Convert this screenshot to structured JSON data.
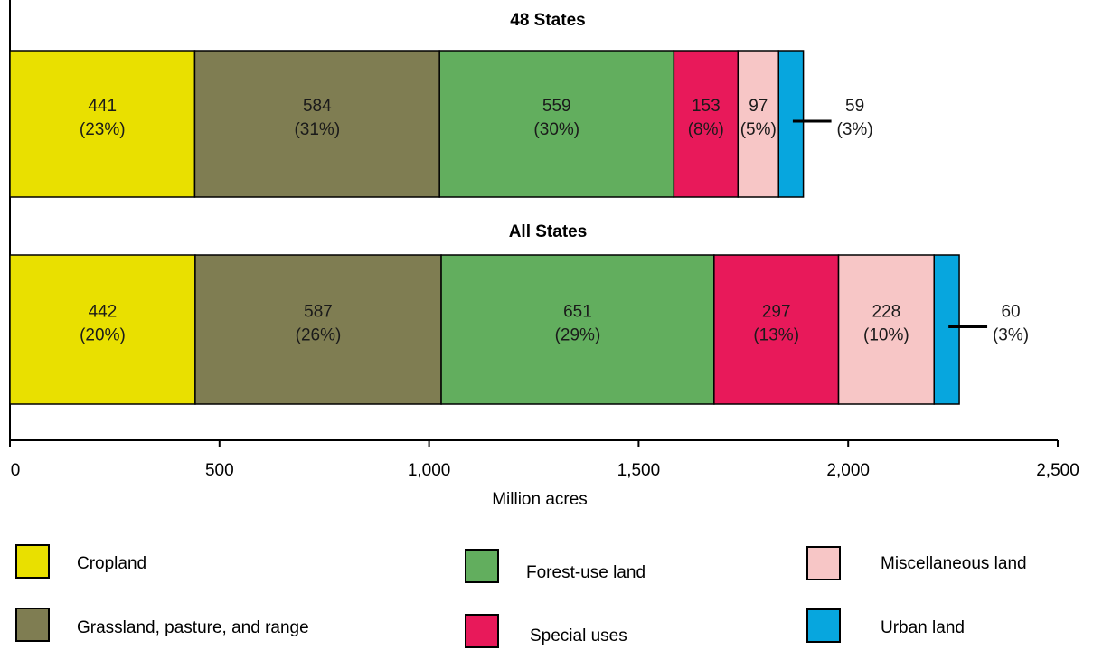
{
  "chart_data": {
    "type": "bar",
    "orientation": "horizontal",
    "stacked": true,
    "xlabel": "Million acres",
    "xlim": [
      0,
      2500
    ],
    "xticks": [
      0,
      500,
      1000,
      1500,
      2000,
      2500
    ],
    "xtick_labels": [
      "0",
      "500",
      "1,000",
      "1,500",
      "2,000",
      "2,500"
    ],
    "grid": false,
    "legend_position": "bottom",
    "categories": [
      {
        "key": "cropland",
        "name": "Cropland",
        "color": "#e9e000"
      },
      {
        "key": "grassland",
        "name": "Grassland, pasture, and range",
        "color": "#7f7d52"
      },
      {
        "key": "forest",
        "name": "Forest-use land",
        "color": "#62ae5e"
      },
      {
        "key": "special",
        "name": "Special uses",
        "color": "#e8195a"
      },
      {
        "key": "misc",
        "name": "Miscellaneous land",
        "color": "#f7c6c6"
      },
      {
        "key": "urban",
        "name": "Urban land",
        "color": "#07a6de"
      }
    ],
    "groups": [
      {
        "title": "48 States",
        "values": [
          441,
          584,
          559,
          153,
          97,
          59
        ],
        "labels": [
          {
            "value": "441",
            "pct": "(23%)"
          },
          {
            "value": "584",
            "pct": "(31%)"
          },
          {
            "value": "559",
            "pct": "(30%)"
          },
          {
            "value": "153",
            "pct": "(8%)"
          },
          {
            "value": "97",
            "pct": "(5%)"
          },
          {
            "value": "59",
            "pct": "(3%)"
          }
        ]
      },
      {
        "title": "All States",
        "values": [
          442,
          587,
          651,
          297,
          228,
          60
        ],
        "labels": [
          {
            "value": "442",
            "pct": "(20%)"
          },
          {
            "value": "587",
            "pct": "(26%)"
          },
          {
            "value": "651",
            "pct": "(29%)"
          },
          {
            "value": "297",
            "pct": "(13%)"
          },
          {
            "value": "228",
            "pct": "(10%)"
          },
          {
            "value": "60",
            "pct": "(3%)"
          }
        ]
      }
    ]
  }
}
